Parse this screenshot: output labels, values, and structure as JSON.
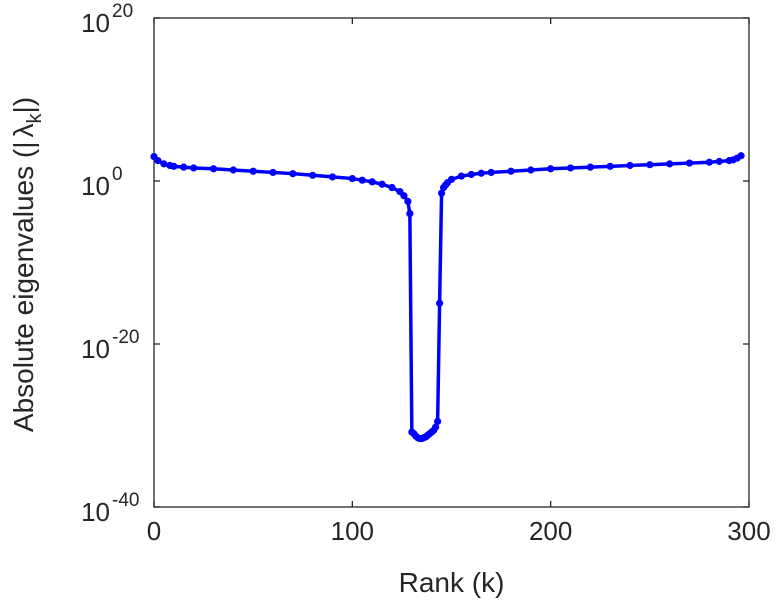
{
  "chart_data": {
    "type": "line",
    "title": "",
    "xlabel": "Rank (k)",
    "ylabel": "Absolute eigenvalues (|λ_k|)",
    "ylabel_parts": {
      "prefix": "Absolute eigenvalues (|",
      "symbol": "λ",
      "subscript": "k",
      "suffix": "|)"
    },
    "xlim": [
      0,
      300
    ],
    "ylim_log10": [
      -40,
      20
    ],
    "yscale": "log",
    "grid": false,
    "legend": "none",
    "x_ticks": [
      {
        "value": 0,
        "label": "0"
      },
      {
        "value": 100,
        "label": "100"
      },
      {
        "value": 200,
        "label": "200"
      },
      {
        "value": 300,
        "label": "300"
      }
    ],
    "y_ticks": [
      {
        "log10": 20,
        "base": "10",
        "exp": "20"
      },
      {
        "log10": 0,
        "base": "10",
        "exp": "0"
      },
      {
        "log10": -20,
        "base": "10",
        "exp": "-20"
      },
      {
        "log10": -40,
        "base": "10",
        "exp": "-40"
      }
    ],
    "series": [
      {
        "color": "#0000ff",
        "marker": "circle",
        "x": [
          0,
          2,
          5,
          8,
          10,
          15,
          20,
          30,
          40,
          50,
          60,
          70,
          80,
          90,
          100,
          105,
          110,
          115,
          120,
          124,
          126,
          128,
          129,
          130,
          131,
          132,
          133,
          134,
          135,
          136,
          137,
          138,
          139,
          140,
          141,
          142,
          143,
          144,
          145,
          146,
          147,
          148,
          150,
          155,
          160,
          165,
          170,
          180,
          190,
          200,
          210,
          220,
          230,
          240,
          250,
          260,
          270,
          280,
          285,
          290,
          292,
          294,
          296
        ],
        "y_log10": [
          3.0,
          2.5,
          2.1,
          1.9,
          1.8,
          1.7,
          1.6,
          1.5,
          1.35,
          1.2,
          1.05,
          0.9,
          0.7,
          0.5,
          0.3,
          0.1,
          -0.1,
          -0.4,
          -0.8,
          -1.3,
          -1.8,
          -2.5,
          -4.0,
          -30.8,
          -31.0,
          -31.3,
          -31.5,
          -31.6,
          -31.6,
          -31.5,
          -31.4,
          -31.2,
          -31.0,
          -30.8,
          -30.6,
          -30.2,
          -29.5,
          -15.0,
          -1.5,
          -0.8,
          -0.5,
          -0.2,
          0.2,
          0.6,
          0.8,
          0.95,
          1.05,
          1.2,
          1.35,
          1.5,
          1.6,
          1.7,
          1.8,
          1.9,
          2.0,
          2.1,
          2.2,
          2.3,
          2.4,
          2.5,
          2.6,
          2.8,
          3.1
        ]
      }
    ]
  }
}
